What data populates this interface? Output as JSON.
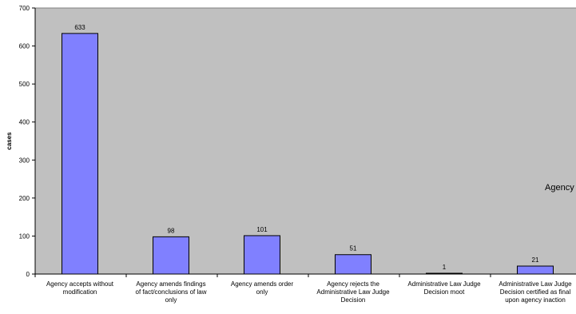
{
  "chart_data": {
    "type": "bar",
    "categories": [
      [
        "Agency accepts without",
        "modification"
      ],
      [
        "Agency amends findings",
        "of fact/conclusions of law",
        "only"
      ],
      [
        "Agency amends order",
        "only"
      ],
      [
        "Agency rejects the",
        "Administrative Law Judge",
        "Decision"
      ],
      [
        "Administrative Law Judge",
        "Decision moot"
      ],
      [
        "Administrative Law Judge",
        "Decision certified as final",
        "upon agency inaction"
      ]
    ],
    "values": [
      633,
      98,
      101,
      51,
      1,
      21
    ],
    "ylabel": "cases",
    "ylim": [
      0,
      700
    ],
    "yticks": [
      0,
      100,
      200,
      300,
      400,
      500,
      600,
      700
    ],
    "grid": false,
    "overlay_text": "Agency",
    "colors": {
      "plot_bg": "#c0c0c0",
      "bar_fill": "#8080ff",
      "bar_stroke": "#000000"
    }
  }
}
